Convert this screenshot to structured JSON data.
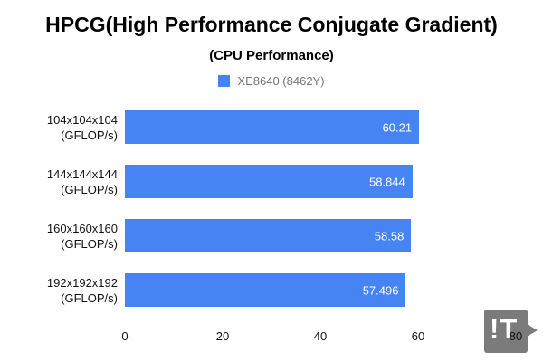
{
  "title": "HPCG(High Performance Conjugate Gradient)",
  "subtitle": "(CPU Performance)",
  "legend": {
    "label": "XE8640 (8462Y)"
  },
  "watermark": {
    "text": "!T",
    "icon": "play-triangle-icon",
    "background_color": "#7b7b7b"
  },
  "chart_data": {
    "type": "bar",
    "orientation": "horizontal",
    "title": "HPCG(High Performance Conjugate Gradient)",
    "subtitle": "(CPU Performance)",
    "categories": [
      "104x104x104 (GFLOP/s)",
      "144x144x144 (GFLOP/s)",
      "160x160x160 (GFLOP/s)",
      "192x192x192 (GFLOP/s)"
    ],
    "category_lines": [
      [
        "104x104x104",
        "(GFLOP/s)"
      ],
      [
        "144x144x144",
        "(GFLOP/s)"
      ],
      [
        "160x160x160",
        "(GFLOP/s)"
      ],
      [
        "192x192x192",
        "(GFLOP/s)"
      ]
    ],
    "series": [
      {
        "name": "XE8640 (8462Y)",
        "values": [
          60.21,
          58.844,
          58.58,
          57.496
        ]
      }
    ],
    "value_labels": [
      "60.21",
      "58.844",
      "58.58",
      "57.496"
    ],
    "xlabel": "",
    "ylabel": "",
    "xlim": [
      0,
      80
    ],
    "xticks": [
      "0",
      "20",
      "40",
      "60",
      "80"
    ],
    "grid": false,
    "legend_position": "top",
    "bar_color": "#4584F2",
    "value_label_color": "#ffffff"
  }
}
